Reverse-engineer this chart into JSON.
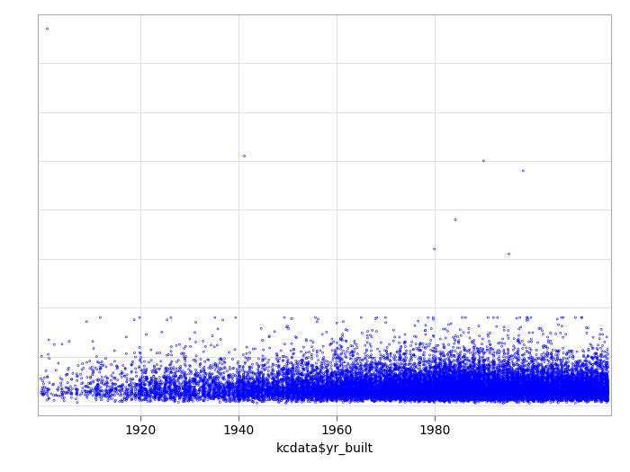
{
  "title": "",
  "xlabel": "kcdata$yr_built",
  "ylabel": "",
  "xlim": [
    1899,
    2016
  ],
  "ylim": [
    -200000,
    8000000
  ],
  "xticks": [
    1920,
    1940,
    1960,
    1980
  ],
  "marker_color": "#0000ff",
  "marker_size": 1.5,
  "marker_facecolor": "none",
  "marker_style": "o",
  "grid": true,
  "background_color": "white",
  "seed": 42,
  "n_points": 21613,
  "yr_built_min": 1900,
  "yr_built_max": 2015,
  "outliers_x": [
    1901,
    1941,
    1984,
    1990,
    1980,
    1995,
    1998
  ],
  "outliers_y": [
    7700000,
    5100000,
    3800000,
    5000000,
    3200000,
    3100000,
    4800000
  ]
}
